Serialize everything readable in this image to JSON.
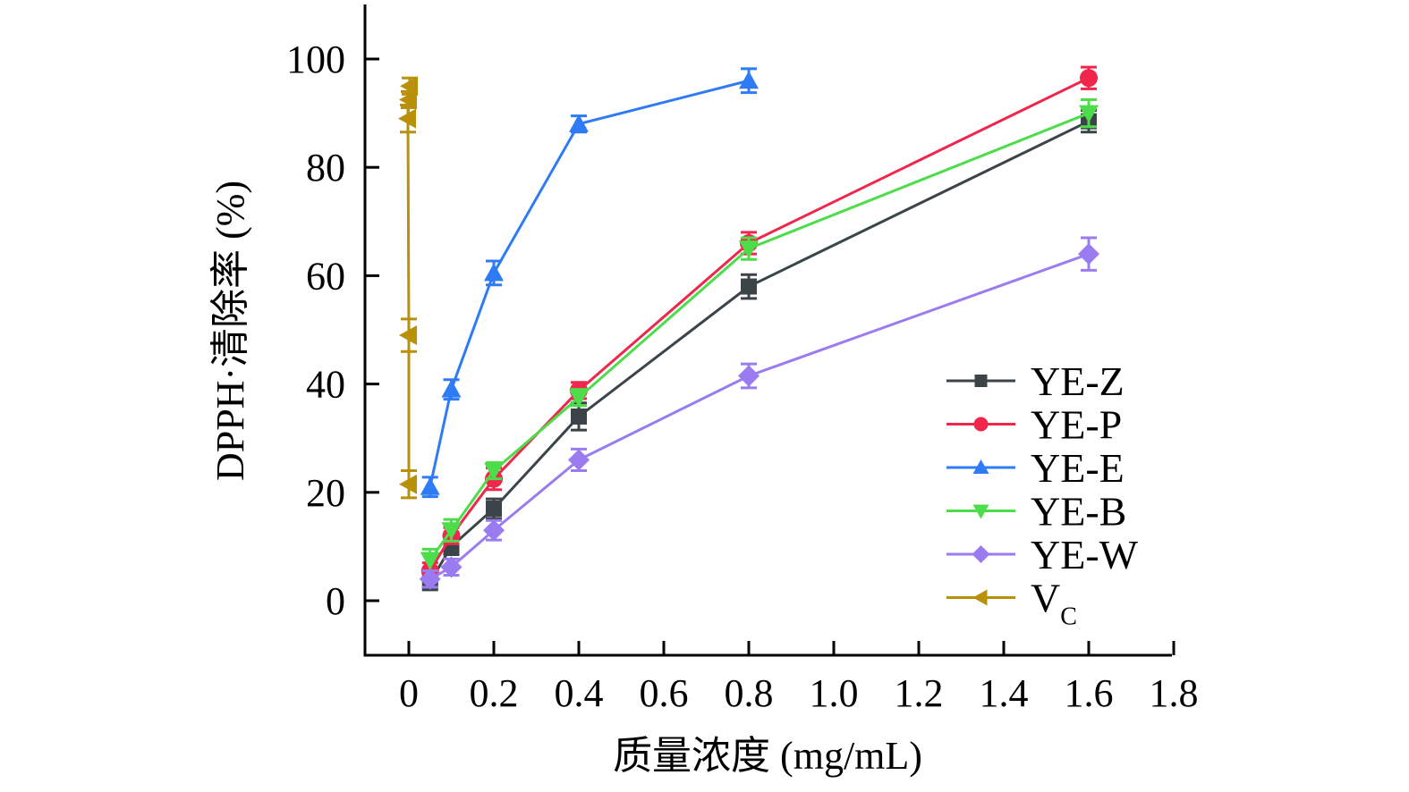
{
  "chart_data": {
    "type": "line",
    "title": "",
    "xlabel": "质量浓度 (mg/mL)",
    "ylabel": "DPPH·清除率 (%)",
    "xlim": [
      -0.1,
      1.8
    ],
    "ylim": [
      -10,
      110
    ],
    "xticks": [
      0,
      0.2,
      0.4,
      0.6,
      0.8,
      1.0,
      1.2,
      1.4,
      1.6,
      1.8
    ],
    "xtick_labels": [
      "0",
      "0.2",
      "0.4",
      "0.6",
      "0.8",
      "1.0",
      "1.2",
      "1.4",
      "1.6",
      "1.8"
    ],
    "yticks": [
      0,
      20,
      40,
      60,
      80,
      100
    ],
    "ytick_labels": [
      "0",
      "20",
      "40",
      "60",
      "80",
      "100"
    ],
    "grid": false,
    "legend_position": "bottom-right",
    "series": [
      {
        "name": "YE-Z",
        "label_main": "YE-Z",
        "label_sub": "",
        "color": "#3a4449",
        "marker": "square",
        "x": [
          0.05,
          0.1,
          0.2,
          0.4,
          0.8,
          1.6
        ],
        "y": [
          3.5,
          10,
          17,
          34,
          58,
          88.5
        ],
        "err": [
          1.5,
          1.5,
          1.8,
          2.5,
          2.2,
          2
        ]
      },
      {
        "name": "YE-P",
        "label_main": "YE-P",
        "label_sub": "",
        "color": "#f0264c",
        "marker": "circle",
        "x": [
          0.05,
          0.1,
          0.2,
          0.4,
          0.8,
          1.6
        ],
        "y": [
          5.5,
          12,
          22.5,
          38.8,
          66,
          96.5
        ],
        "err": [
          1.5,
          1.5,
          2,
          1.5,
          2,
          2
        ]
      },
      {
        "name": "YE-E",
        "label_main": "YE-E",
        "label_sub": "",
        "color": "#2f7bf5",
        "marker": "triangle-up",
        "x": [
          0.05,
          0.1,
          0.2,
          0.4,
          0.8
        ],
        "y": [
          21,
          39,
          60.5,
          88,
          96
        ],
        "err": [
          1.8,
          1.8,
          2.2,
          1.5,
          2.2
        ]
      },
      {
        "name": "YE-B",
        "label_main": "YE-B",
        "label_sub": "",
        "color": "#4ddc4a",
        "marker": "triangle-down",
        "x": [
          0.05,
          0.1,
          0.2,
          0.4,
          0.8,
          1.6
        ],
        "y": [
          7.5,
          13,
          24,
          37.5,
          65,
          90
        ],
        "err": [
          2,
          2,
          1.5,
          1.5,
          2,
          2.5
        ]
      },
      {
        "name": "YE-W",
        "label_main": "YE-W",
        "label_sub": "",
        "color": "#9b7cf0",
        "marker": "diamond",
        "x": [
          0.05,
          0.1,
          0.2,
          0.4,
          0.8,
          1.6
        ],
        "y": [
          4,
          6.2,
          13,
          26,
          41.5,
          64
        ],
        "err": [
          1.5,
          1.5,
          1.8,
          2,
          2.2,
          3
        ]
      },
      {
        "name": "VC",
        "label_main": "V",
        "label_sub": "C",
        "color": "#b8900a",
        "marker": "triangle-left",
        "x": [
          0.0,
          0.0,
          0.0,
          0.0,
          0.0
        ],
        "y": [
          21.5,
          49,
          89,
          92.5,
          95
        ],
        "err": [
          2.5,
          3,
          2.5,
          1.5,
          1.5
        ]
      }
    ]
  }
}
